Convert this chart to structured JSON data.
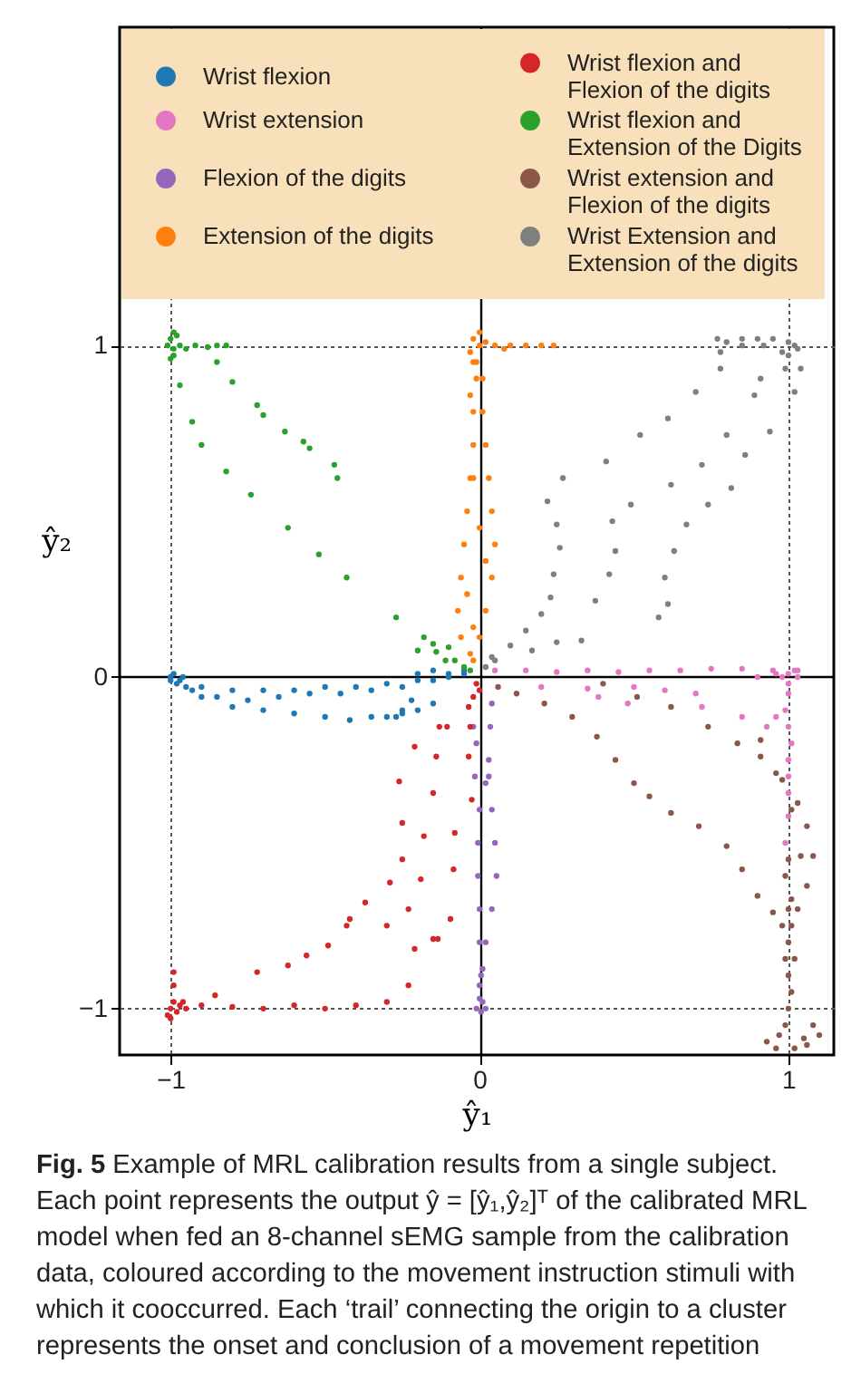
{
  "chart_data": {
    "type": "scatter",
    "xlabel": "ŷ₁",
    "ylabel": "ŷ₂",
    "xlim": [
      -1.165,
      1.147
    ],
    "ylim": [
      -1.14,
      1.96
    ],
    "xticks": [
      {
        "value": -1,
        "label": "−1"
      },
      0,
      1
    ],
    "yticks": [
      {
        "value": -1,
        "label": "−1"
      },
      0,
      1
    ],
    "grid": true,
    "legend": "top",
    "marker": "circle",
    "annotations": [
      "Fig. 5 Example of MRL calibration results from a single subject. Each point represents the output ŷ = [ŷ₁,ŷ₂]ᵀ of the calibrated MRL model when fed an 8-channel sEMG sample from the calibration data, coloured according to the movement instruction stimuli with which it cooccurred. Each ‘trail’ connecting the origin to a cluster represents the onset and conclusion of a movement repetition"
    ],
    "series": [
      {
        "name": "Wrist flexion",
        "color": "#1f77b4",
        "x": [
          -0.97,
          -0.9,
          -0.8,
          -0.7,
          -0.6,
          -0.5,
          -0.4,
          -0.3,
          -0.2,
          -0.1,
          -0.05,
          -0.93,
          -0.85,
          -0.75,
          -0.65,
          -0.55,
          -0.45,
          -0.35,
          -0.25,
          -0.15,
          -0.9,
          -0.8,
          -0.7,
          -0.6,
          -0.5,
          -0.42,
          -0.35,
          -0.3,
          -0.25,
          -0.2,
          -0.15,
          -0.27,
          -0.25,
          -0.22,
          -1,
          -0.99,
          -1,
          -0.98,
          -0.96,
          -0.95,
          -0.1,
          -0.05,
          -0.15,
          -0.2
        ],
        "values": [
          -0.01,
          -0.03,
          -0.04,
          -0.04,
          -0.04,
          -0.03,
          -0.03,
          -0.02,
          -0.01,
          0,
          0.01,
          -0.04,
          -0.06,
          -0.07,
          -0.06,
          -0.05,
          -0.05,
          -0.04,
          -0.03,
          -0.01,
          -0.06,
          -0.09,
          -0.1,
          -0.11,
          -0.12,
          -0.13,
          -0.12,
          -0.12,
          -0.11,
          -0.1,
          -0.08,
          -0.12,
          -0.1,
          -0.07,
          0,
          0.01,
          -0.01,
          -0.02,
          0,
          -0.03,
          0.01,
          0.02,
          0.02,
          0.01
        ]
      },
      {
        "name": "Wrist extension",
        "color": "#e377c2",
        "x": [
          0.05,
          0.15,
          0.25,
          0.35,
          0.45,
          0.55,
          0.65,
          0.75,
          0.85,
          0.95,
          1.03,
          0.2,
          0.35,
          0.5,
          0.6,
          0.7,
          0.385,
          0.48,
          0.72,
          0.85,
          0.93,
          0.96,
          1,
          0.99,
          1,
          1.01,
          1,
          1,
          1,
          1,
          0.99,
          0.98,
          1,
          1.02,
          0.96,
          1.03,
          0.9,
          1
        ],
        "values": [
          0.02,
          0.02,
          0.015,
          0.02,
          0.015,
          0.02,
          0.02,
          0.025,
          0.025,
          0.02,
          0.02,
          -0.03,
          -0.035,
          -0.03,
          -0.04,
          -0.05,
          -0.06,
          -0.08,
          -0.09,
          -0.12,
          -0.15,
          -0.12,
          -0.05,
          -0.1,
          -0.15,
          -0.2,
          -0.25,
          -0.3,
          -0.35,
          -0.42,
          -0.5,
          0,
          0.01,
          0.02,
          0.01,
          0,
          0,
          -0.02
        ]
      },
      {
        "name": "Flexion of the digits",
        "color": "#9467bd",
        "x": [
          0.04,
          0.035,
          0.03,
          0.02,
          0,
          -0.005,
          -0.005,
          0,
          0,
          0.005,
          0.03,
          0.04,
          0.05,
          0.055,
          0.04,
          0.02,
          0.01,
          -0.02,
          -0.01,
          -0.015,
          0.01,
          -0.01,
          0.02,
          0,
          0,
          0.005
        ],
        "values": [
          -0.08,
          -0.15,
          -0.25,
          -0.32,
          -0.4,
          -0.5,
          -0.6,
          -0.7,
          -0.8,
          -0.9,
          -0.3,
          -0.4,
          -0.5,
          -0.6,
          -0.7,
          -0.8,
          -0.88,
          -0.15,
          -0.2,
          -0.3,
          -0.98,
          -1,
          -1,
          -0.97,
          -0.93,
          -1.01
        ]
      },
      {
        "name": "Extension of the digits",
        "color": "#ff7f0e",
        "x": [
          -0.01,
          -0.01,
          -0.02,
          -0.02,
          -0.03,
          -0.04,
          -0.05,
          -0.06,
          -0.07,
          -0.06,
          -0.03,
          0.01,
          0.01,
          0.02,
          0.03,
          0.04,
          0.05,
          0.04,
          0.02,
          0,
          -0.02,
          -0.03,
          -0.02,
          0,
          0.02,
          -0.04,
          -0.02,
          0,
          0.02,
          0.05,
          0.1,
          0.15,
          0.2,
          0.24,
          -0.02,
          -0.03,
          0,
          0.08,
          -0.02
        ],
        "values": [
          0.95,
          0.9,
          0.8,
          0.7,
          0.6,
          0.5,
          0.4,
          0.3,
          0.2,
          0.12,
          0.07,
          0.9,
          0.8,
          0.7,
          0.6,
          0.5,
          0.4,
          0.3,
          0.2,
          0.12,
          0.05,
          0.85,
          0.6,
          0.45,
          0.35,
          0.25,
          0.15,
          1,
          1.01,
          1,
          1,
          1,
          1,
          1,
          1.02,
          0.98,
          1.04,
          0.99,
          0.95
        ]
      },
      {
        "name": "Wrist flexion and Flexion of the digits",
        "color": "#d62728",
        "x": [
          -0.9,
          -0.8,
          -0.7,
          -0.6,
          -0.5,
          -0.4,
          -0.3,
          -0.23,
          -0.21,
          -0.15,
          -0.856,
          -0.72,
          -0.56,
          -0.43,
          -0.37,
          -0.29,
          -0.25,
          -0.25,
          -0.26,
          -0.21,
          -0.13,
          -0.035,
          -0.62,
          -0.49,
          -0.42,
          -0.3,
          -0.23,
          -0.19,
          -0.18,
          -0.15,
          -0.14,
          -0.105,
          -0.135,
          -0.094,
          -0.084,
          -0.08,
          -0.025,
          -0.035,
          -0.03,
          -1,
          -0.99,
          -1.01,
          -0.98,
          -0.97,
          -0.99,
          -0.99,
          -1,
          -0.95,
          -0.96,
          -0.01,
          0,
          -0.02
        ],
        "values": [
          -0.99,
          -0.995,
          -1,
          -0.99,
          -1,
          -0.99,
          -0.98,
          -0.93,
          -0.82,
          -0.79,
          -0.96,
          -0.89,
          -0.84,
          -0.75,
          -0.68,
          -0.62,
          -0.55,
          -0.44,
          -0.315,
          -0.21,
          -0.15,
          -0.09,
          -0.87,
          -0.81,
          -0.73,
          -0.75,
          -0.7,
          -0.61,
          -0.48,
          -0.35,
          -0.24,
          -0.15,
          -0.79,
          -0.73,
          -0.58,
          -0.47,
          -0.37,
          -0.24,
          -0.15,
          -1,
          -0.98,
          -1.02,
          -1.01,
          -0.99,
          -0.93,
          -0.89,
          -1.03,
          -1,
          -0.98,
          -0.02,
          -0.04,
          -0.06
        ]
      },
      {
        "name": "Wrist flexion and Extension of the Digits",
        "color": "#2ca02c",
        "x": [
          -0.14,
          -0.27,
          -0.43,
          -0.52,
          -0.62,
          -0.74,
          -0.82,
          -0.9,
          -0.93,
          -0.97,
          -0.99,
          -0.85,
          -0.8,
          -0.72,
          -0.7,
          -0.63,
          -0.57,
          -0.55,
          -0.47,
          -0.46,
          -1,
          -0.98,
          -0.99,
          -1.01,
          -0.97,
          -0.95,
          -0.92,
          -0.88,
          -0.85,
          -0.82,
          -0.99,
          -1,
          -0.05,
          -0.08,
          -0.03,
          -0.11,
          -0.15,
          -0.18,
          -0.2,
          -0.1
        ],
        "values": [
          0.076,
          0.18,
          0.3,
          0.37,
          0.45,
          0.55,
          0.62,
          0.7,
          0.77,
          0.88,
          0.97,
          0.95,
          0.89,
          0.82,
          0.79,
          0.74,
          0.71,
          0.69,
          0.64,
          0.6,
          1.02,
          1.03,
          0.99,
          1,
          1,
          0.99,
          1,
          0.995,
          1,
          1,
          1.04,
          0.96,
          0.03,
          0.05,
          0.02,
          0.05,
          0.1,
          0.12,
          0.08,
          0.09
        ]
      },
      {
        "name": "Wrist extension and Flexion of the digits",
        "color": "#8c564b",
        "x": [
          0.06,
          0.12,
          0.21,
          0.3,
          0.38,
          0.44,
          0.5,
          0.55,
          0.62,
          0.71,
          0.8,
          0.85,
          0.9,
          0.95,
          0.4,
          0.51,
          0.62,
          0.74,
          0.835,
          0.91,
          0.98,
          1.03,
          1.06,
          1.08,
          1.06,
          1.03,
          0.91,
          0.96,
          1.01,
          1.04,
          1.01,
          1,
          0.99,
          1,
          1.01,
          1,
          0.99,
          1,
          1.01,
          1,
          0.99,
          0.97,
          0.93,
          0.96,
          1.05,
          1.08,
          1.1,
          1.06,
          1.02,
          0.98,
          1.02
        ],
        "values": [
          -0.03,
          -0.05,
          -0.08,
          -0.12,
          -0.18,
          -0.25,
          -0.32,
          -0.36,
          -0.41,
          -0.45,
          -0.51,
          -0.58,
          -0.66,
          -0.71,
          -0.02,
          -0.06,
          -0.09,
          -0.15,
          -0.2,
          -0.24,
          -0.31,
          -0.38,
          -0.45,
          -0.54,
          -0.63,
          -0.7,
          -0.19,
          -0.29,
          -0.4,
          -0.54,
          -0.67,
          -0.55,
          -0.6,
          -0.7,
          -0.75,
          -0.8,
          -0.85,
          -0.9,
          -0.95,
          -1,
          -1.05,
          -1.08,
          -1.1,
          -1.12,
          -1.09,
          -1.05,
          -1.08,
          -1.11,
          -1.12,
          -0.75,
          -0.85
        ]
      },
      {
        "name": "Wrist Extension and Extension of the digits",
        "color": "#7f7f7f",
        "x": [
          0.27,
          0.22,
          0.25,
          0.26,
          0.24,
          0.23,
          0.2,
          0.15,
          0.1,
          0.04,
          0.41,
          0.52,
          0.61,
          0.7,
          0.78,
          0.78,
          0.43,
          0.44,
          0.42,
          0.375,
          0.33,
          0.25,
          0.17,
          0.49,
          0.62,
          0.72,
          0.8,
          0.89,
          0.91,
          0.58,
          0.61,
          0.6,
          0.63,
          0.67,
          0.74,
          0.815,
          0.86,
          0.94,
          0.99,
          1.02,
          1.04,
          0.77,
          0.8,
          0.85,
          0.9,
          0.95,
          1,
          1.02,
          0.98,
          1,
          0.92,
          0.85,
          1.03,
          0.02,
          0.05
        ],
        "values": [
          0.6,
          0.53,
          0.46,
          0.39,
          0.31,
          0.24,
          0.19,
          0.14,
          0.095,
          0.06,
          0.65,
          0.73,
          0.78,
          0.86,
          0.93,
          0.98,
          0.47,
          0.38,
          0.31,
          0.23,
          0.11,
          0.105,
          0.08,
          0.52,
          0.58,
          0.64,
          0.73,
          0.85,
          0.9,
          0.18,
          0.22,
          0.3,
          0.38,
          0.46,
          0.52,
          0.57,
          0.67,
          0.74,
          0.93,
          0.86,
          0.93,
          1.02,
          1.01,
          1.02,
          1.02,
          1.02,
          1.01,
          1,
          0.98,
          0.97,
          1,
          1,
          0.99,
          0.03,
          0.05
        ]
      }
    ]
  }
}
